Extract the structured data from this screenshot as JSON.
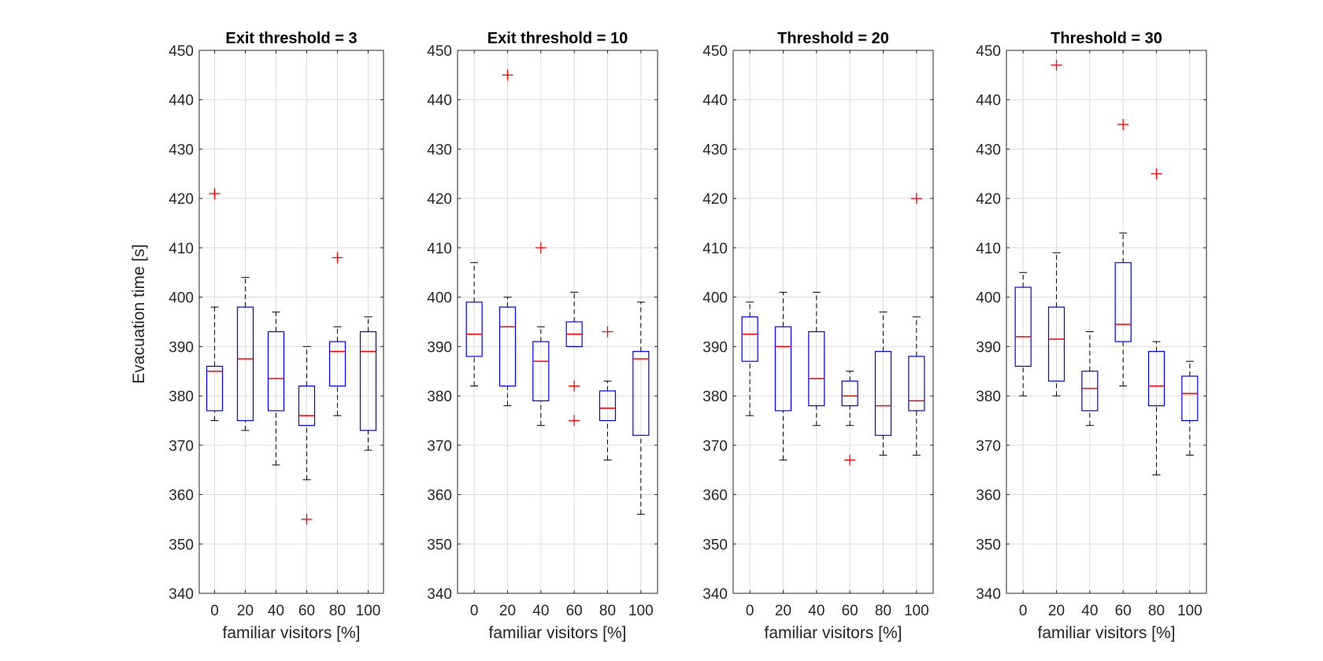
{
  "chart_data": [
    {
      "type": "box",
      "title": "Exit threshold = 3",
      "xlabel": "familiar visitors [%]",
      "ylabel": "Evacuation time [s]",
      "categories": [
        "0",
        "20",
        "40",
        "60",
        "80",
        "100"
      ],
      "ylim": [
        340,
        450
      ],
      "yticks": [
        340,
        350,
        360,
        370,
        380,
        390,
        400,
        410,
        420,
        430,
        440,
        450
      ],
      "grid": true,
      "boxes": [
        {
          "whisker_low": 375,
          "q1": 377,
          "median": 385,
          "q3": 386,
          "whisker_high": 398,
          "outliers": [
            421
          ]
        },
        {
          "whisker_low": 373,
          "q1": 375,
          "median": 387.5,
          "q3": 398,
          "whisker_high": 404,
          "outliers": []
        },
        {
          "whisker_low": 366,
          "q1": 377,
          "median": 383.5,
          "q3": 393,
          "whisker_high": 397,
          "outliers": []
        },
        {
          "whisker_low": 363,
          "q1": 374,
          "median": 376,
          "q3": 382,
          "whisker_high": 390,
          "outliers": [
            355
          ]
        },
        {
          "whisker_low": 376,
          "q1": 382,
          "median": 389,
          "q3": 391,
          "whisker_high": 394,
          "outliers": [
            408
          ]
        },
        {
          "whisker_low": 369,
          "q1": 373,
          "median": 389,
          "q3": 393,
          "whisker_high": 396,
          "outliers": []
        }
      ]
    },
    {
      "type": "box",
      "title": "Exit threshold = 10",
      "xlabel": "familiar visitors [%]",
      "ylabel": "",
      "categories": [
        "0",
        "20",
        "40",
        "60",
        "80",
        "100"
      ],
      "ylim": [
        340,
        450
      ],
      "yticks": [
        340,
        350,
        360,
        370,
        380,
        390,
        400,
        410,
        420,
        430,
        440,
        450
      ],
      "grid": true,
      "boxes": [
        {
          "whisker_low": 382,
          "q1": 388,
          "median": 392.5,
          "q3": 399,
          "whisker_high": 407,
          "outliers": []
        },
        {
          "whisker_low": 378,
          "q1": 382,
          "median": 394,
          "q3": 398,
          "whisker_high": 400,
          "outliers": [
            445
          ]
        },
        {
          "whisker_low": 374,
          "q1": 379,
          "median": 387,
          "q3": 391,
          "whisker_high": 394,
          "outliers": [
            410
          ]
        },
        {
          "whisker_low": 390,
          "q1": 390,
          "median": 392.5,
          "q3": 395,
          "whisker_high": 401,
          "outliers": [
            382,
            375
          ]
        },
        {
          "whisker_low": 367,
          "q1": 375,
          "median": 377.5,
          "q3": 381,
          "whisker_high": 383,
          "outliers": [
            393
          ]
        },
        {
          "whisker_low": 356,
          "q1": 372,
          "median": 387.5,
          "q3": 389,
          "whisker_high": 399,
          "outliers": []
        }
      ]
    },
    {
      "type": "box",
      "title": "Threshold = 20",
      "xlabel": "familiar visitors [%]",
      "ylabel": "",
      "categories": [
        "0",
        "20",
        "40",
        "60",
        "80",
        "100"
      ],
      "ylim": [
        340,
        450
      ],
      "yticks": [
        340,
        350,
        360,
        370,
        380,
        390,
        400,
        410,
        420,
        430,
        440,
        450
      ],
      "grid": true,
      "boxes": [
        {
          "whisker_low": 376,
          "q1": 387,
          "median": 392.5,
          "q3": 396,
          "whisker_high": 399,
          "outliers": []
        },
        {
          "whisker_low": 367,
          "q1": 377,
          "median": 390,
          "q3": 394,
          "whisker_high": 401,
          "outliers": []
        },
        {
          "whisker_low": 374,
          "q1": 378,
          "median": 383.5,
          "q3": 393,
          "whisker_high": 401,
          "outliers": []
        },
        {
          "whisker_low": 374,
          "q1": 378,
          "median": 380,
          "q3": 383,
          "whisker_high": 385,
          "outliers": [
            367
          ]
        },
        {
          "whisker_low": 368,
          "q1": 372,
          "median": 378,
          "q3": 389,
          "whisker_high": 397,
          "outliers": []
        },
        {
          "whisker_low": 368,
          "q1": 377,
          "median": 379,
          "q3": 388,
          "whisker_high": 396,
          "outliers": [
            420
          ]
        }
      ]
    },
    {
      "type": "box",
      "title": "Threshold = 30",
      "xlabel": "familiar visitors [%]",
      "ylabel": "",
      "categories": [
        "0",
        "20",
        "40",
        "60",
        "80",
        "100"
      ],
      "ylim": [
        340,
        450
      ],
      "yticks": [
        340,
        350,
        360,
        370,
        380,
        390,
        400,
        410,
        420,
        430,
        440,
        450
      ],
      "grid": true,
      "boxes": [
        {
          "whisker_low": 380,
          "q1": 386,
          "median": 392,
          "q3": 402,
          "whisker_high": 405,
          "outliers": []
        },
        {
          "whisker_low": 380,
          "q1": 383,
          "median": 391.5,
          "q3": 398,
          "whisker_high": 409,
          "outliers": [
            447
          ]
        },
        {
          "whisker_low": 374,
          "q1": 377,
          "median": 381.5,
          "q3": 385,
          "whisker_high": 393,
          "outliers": []
        },
        {
          "whisker_low": 382,
          "q1": 391,
          "median": 394.5,
          "q3": 407,
          "whisker_high": 413,
          "outliers": [
            435
          ]
        },
        {
          "whisker_low": 364,
          "q1": 378,
          "median": 382,
          "q3": 389,
          "whisker_high": 391,
          "outliers": [
            425
          ]
        },
        {
          "whisker_low": 368,
          "q1": 375,
          "median": 380.5,
          "q3": 384,
          "whisker_high": 387,
          "outliers": []
        }
      ]
    }
  ],
  "colors": {
    "box": "#0000ff",
    "median": "#ff0000",
    "outlier": "#ff0000",
    "whisker": "#000000",
    "grid": "#dcdcdc",
    "axis": "#262626"
  }
}
